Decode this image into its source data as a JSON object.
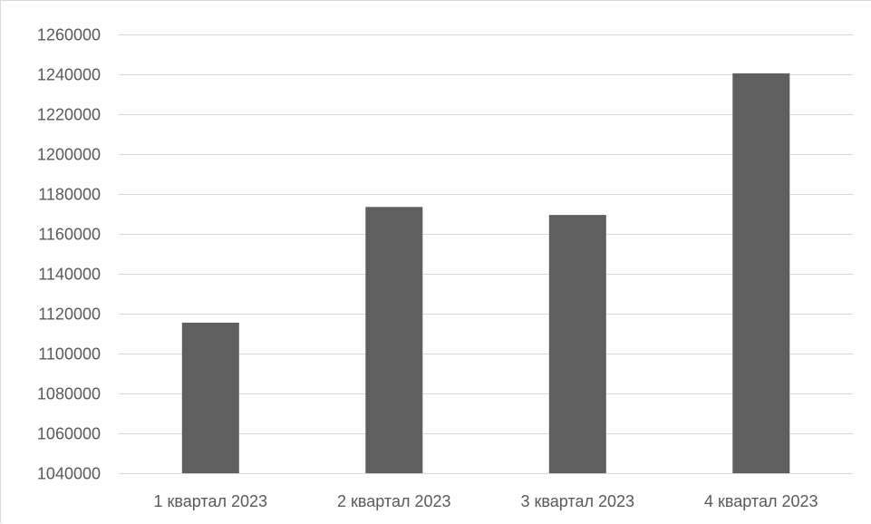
{
  "chart_data": {
    "type": "bar",
    "categories": [
      "1 квартал 2023",
      "2 квартал 2023",
      "3 квартал 2023",
      "4 квартал 2023"
    ],
    "values": [
      1115500,
      1173500,
      1169500,
      1240500
    ],
    "ylim": [
      1040000,
      1260000
    ],
    "y_ticks": [
      1040000,
      1060000,
      1080000,
      1100000,
      1120000,
      1140000,
      1160000,
      1180000,
      1200000,
      1220000,
      1240000,
      1260000
    ],
    "grid": true,
    "legend": "none",
    "bar_color": "#5f5f5f",
    "grid_color": "#d9d9d9",
    "text_color": "#595959"
  }
}
